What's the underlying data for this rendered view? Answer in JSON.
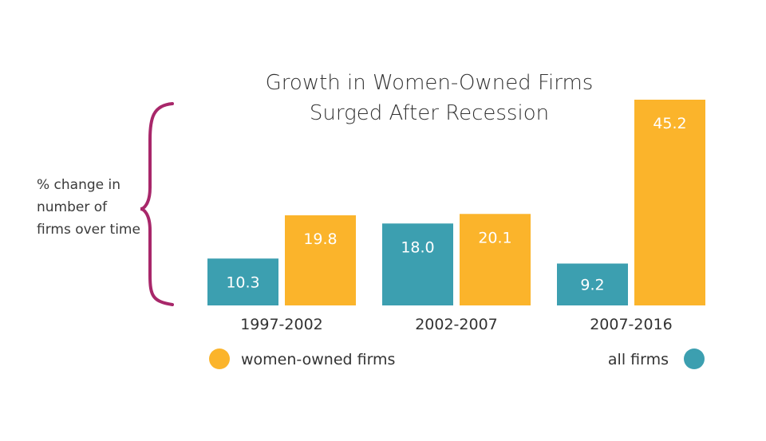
{
  "chart_data": {
    "type": "bar",
    "title_lines": [
      "Growth in Women-Owned Firms",
      "Surged After Recession"
    ],
    "ylabel_lines": [
      "% change in",
      "number of",
      "firms over time"
    ],
    "categories": [
      "1997-2002",
      "2002-2007",
      "2007-2016"
    ],
    "series": [
      {
        "name": "all firms",
        "color": "#3c9fb0",
        "values": [
          10.3,
          18.0,
          9.2
        ],
        "labels": [
          "10.3",
          "18.0",
          "9.2"
        ]
      },
      {
        "name": "women-owned firms",
        "color": "#fbb42b",
        "values": [
          19.8,
          20.1,
          45.2
        ],
        "labels": [
          "19.8",
          "20.1",
          "45.2"
        ]
      }
    ],
    "ylim": [
      0,
      45.2
    ],
    "grid": false,
    "legend": {
      "placement": "bottom"
    },
    "brace_color": "#a8276a"
  }
}
